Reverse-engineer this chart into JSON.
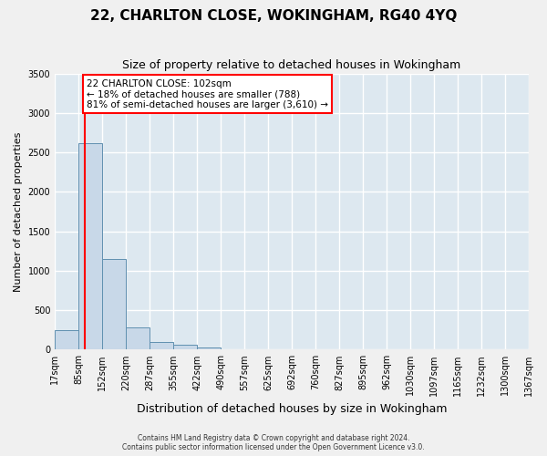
{
  "title": "22, CHARLTON CLOSE, WOKINGHAM, RG40 4YQ",
  "subtitle": "Size of property relative to detached houses in Wokingham",
  "xlabel": "Distribution of detached houses by size in Wokingham",
  "ylabel": "Number of detached properties",
  "bin_labels": [
    "17sqm",
    "85sqm",
    "152sqm",
    "220sqm",
    "287sqm",
    "355sqm",
    "422sqm",
    "490sqm",
    "557sqm",
    "625sqm",
    "692sqm",
    "760sqm",
    "827sqm",
    "895sqm",
    "962sqm",
    "1030sqm",
    "1097sqm",
    "1165sqm",
    "1232sqm",
    "1300sqm",
    "1367sqm"
  ],
  "bar_values": [
    250,
    2620,
    1150,
    280,
    100,
    60,
    30,
    5,
    3,
    2,
    1,
    1,
    1,
    0,
    0,
    0,
    0,
    0,
    0,
    0
  ],
  "bar_color": "#c8d8e8",
  "bar_edge_color": "#6090b0",
  "ylim": [
    0,
    3500
  ],
  "yticks": [
    0,
    500,
    1000,
    1500,
    2000,
    2500,
    3000,
    3500
  ],
  "property_size_label": "22 CHARLTON CLOSE: 102sqm",
  "annotation_line1": "← 18% of detached houses are smaller (788)",
  "annotation_line2": "81% of semi-detached houses are larger (3,610) →",
  "footer_line1": "Contains HM Land Registry data © Crown copyright and database right 2024.",
  "footer_line2": "Contains public sector information licensed under the Open Government Licence v3.0.",
  "background_color": "#dde8f0",
  "grid_color": "#ffffff",
  "title_fontsize": 11,
  "subtitle_fontsize": 9,
  "tick_fontsize": 7,
  "ylabel_fontsize": 8,
  "xlabel_fontsize": 9
}
